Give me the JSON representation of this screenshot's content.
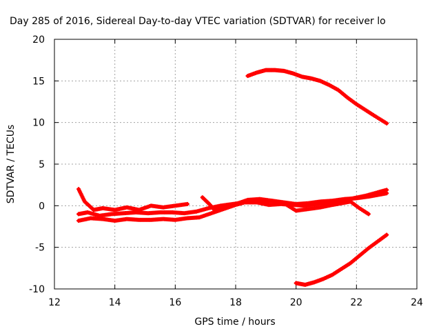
{
  "chart_data": {
    "type": "scatter",
    "title": "Day 285 of 2016, Sidereal Day-to-day VTEC variation (SDTVAR) for receiver lo",
    "xlabel": "GPS time / hours",
    "ylabel": "SDTVAR / TECUs",
    "xlim": [
      12,
      24
    ],
    "ylim": [
      -10,
      20
    ],
    "xticks": [
      12,
      14,
      16,
      18,
      20,
      22,
      24
    ],
    "yticks": [
      -10,
      -5,
      0,
      5,
      10,
      15,
      20
    ],
    "grid": true,
    "color": "#ff0000",
    "marker": "plus",
    "series": [
      {
        "x": [
          18.4,
          18.7,
          19.0,
          19.3,
          19.6,
          19.9,
          20.2,
          20.5,
          20.8,
          21.1,
          21.4,
          21.7,
          22.0,
          22.3,
          22.6,
          23.0
        ],
        "y": [
          15.6,
          16.0,
          16.3,
          16.3,
          16.2,
          15.9,
          15.5,
          15.3,
          15.0,
          14.5,
          13.9,
          13.0,
          12.2,
          11.5,
          10.8,
          9.9
        ]
      },
      {
        "x": [
          20.0,
          20.3,
          20.6,
          20.9,
          21.2,
          21.5,
          21.8,
          22.1,
          22.4,
          22.7,
          23.0
        ],
        "y": [
          -9.3,
          -9.5,
          -9.2,
          -8.8,
          -8.3,
          -7.6,
          -6.9,
          -6.0,
          -5.1,
          -4.3,
          -3.5
        ]
      },
      {
        "x": [
          12.8,
          13.0,
          13.3,
          13.6,
          14.0,
          14.4,
          14.8,
          15.2,
          15.6,
          16.0,
          16.4
        ],
        "y": [
          2.0,
          0.5,
          -0.5,
          -0.3,
          -0.5,
          -0.2,
          -0.5,
          0.0,
          -0.2,
          0.0,
          0.2
        ]
      },
      {
        "x": [
          12.8,
          13.1,
          13.5,
          13.9,
          14.3,
          14.7,
          15.1,
          15.5,
          15.9,
          16.3,
          16.7,
          17.1,
          17.5,
          17.9,
          18.3,
          18.7,
          19.1,
          19.5,
          19.9,
          20.3,
          20.7,
          21.1,
          21.5,
          21.9,
          22.3,
          22.7,
          23.0
        ],
        "y": [
          -1.0,
          -0.8,
          -1.2,
          -1.0,
          -0.9,
          -0.8,
          -0.9,
          -0.8,
          -0.8,
          -0.9,
          -0.7,
          -0.3,
          0.0,
          0.2,
          0.4,
          0.4,
          0.1,
          0.2,
          0.1,
          0.0,
          0.2,
          0.4,
          0.6,
          0.9,
          1.2,
          1.6,
          1.9
        ]
      },
      {
        "x": [
          12.8,
          13.2,
          13.6,
          14.0,
          14.4,
          14.8,
          15.2,
          15.6,
          16.0,
          16.4,
          16.8,
          17.2,
          17.6,
          18.0,
          18.4,
          18.8,
          19.2,
          19.6,
          20.0,
          20.4,
          20.8,
          21.2,
          21.6,
          22.0,
          22.4,
          22.7,
          23.0
        ],
        "y": [
          -1.8,
          -1.5,
          -1.6,
          -1.8,
          -1.6,
          -1.7,
          -1.7,
          -1.6,
          -1.7,
          -1.5,
          -1.4,
          -0.9,
          -0.4,
          0.1,
          0.5,
          0.4,
          0.6,
          0.4,
          0.2,
          0.3,
          0.5,
          0.6,
          0.8,
          0.9,
          1.1,
          1.3,
          1.5
        ]
      },
      {
        "x": [
          16.9,
          17.1,
          17.3,
          17.6,
          18.0,
          18.4,
          18.8,
          19.2,
          19.6,
          20.0,
          20.4,
          20.8,
          21.2,
          21.5,
          21.8,
          22.1,
          22.4
        ],
        "y": [
          1.0,
          0.3,
          -0.5,
          -0.3,
          0.2,
          0.7,
          0.8,
          0.6,
          0.3,
          -0.6,
          -0.4,
          -0.2,
          0.1,
          0.3,
          0.5,
          -0.3,
          -1.0
        ]
      }
    ]
  }
}
